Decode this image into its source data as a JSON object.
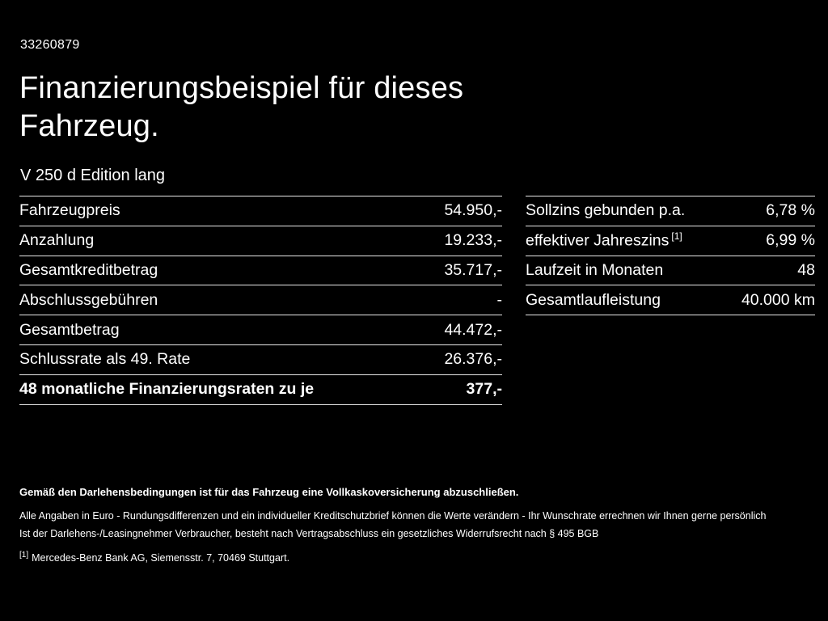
{
  "meta": {
    "vehicle_id": "33260879"
  },
  "header": {
    "title_line1": "Finanzierungsbeispiel für dieses",
    "title_line2": "Fahrzeug.",
    "vehicle_model": "V 250 d Edition lang"
  },
  "left_table": {
    "rows": [
      {
        "label": "Fahrzeugpreis",
        "value": "54.950,-"
      },
      {
        "label": "Anzahlung",
        "value": "19.233,-"
      },
      {
        "label": "Gesamtkreditbetrag",
        "value": "35.717,-"
      },
      {
        "label": "Abschlussgebühren",
        "value": "-"
      },
      {
        "label": "Gesamtbetrag",
        "value": "44.472,-"
      },
      {
        "label": "Schlussrate als 49. Rate",
        "value": "26.376,-"
      },
      {
        "label": "48 monatliche Finanzierungsraten zu je",
        "value": "377,-"
      }
    ]
  },
  "right_table": {
    "rows": [
      {
        "label": "Sollzins gebunden p.a.",
        "sup": "",
        "value": "6,78 %"
      },
      {
        "label": "effektiver Jahreszins",
        "sup": "[1]",
        "value": "6,99 %"
      },
      {
        "label": "Laufzeit in Monaten",
        "sup": "",
        "value": "48"
      },
      {
        "label": "Gesamtlaufleistung",
        "sup": "",
        "value": "40.000 km"
      }
    ]
  },
  "footer": {
    "insurance_note": "Gemäß den Darlehensbedingungen ist für das Fahrzeug eine Vollkaskoversicherung abzuschließen.",
    "general_note": "Alle Angaben in Euro - Rundungsdifferenzen und ein individueller Kreditschutzbrief können die Werte verändern - Ihr Wunschrate errechnen wir Ihnen gerne persönlich",
    "withdrawal_note": "Ist der Darlehens-/Leasingnehmer Verbraucher, besteht nach Vertragsabschluss ein gesetzliches Widerrufsrecht nach § 495 BGB",
    "footnote_marker": "[1]",
    "footnote_text": "Mercedes-Benz Bank AG, Siemensstr. 7, 70469 Stuttgart."
  },
  "colors": {
    "background": "#000000",
    "text": "#ffffff",
    "divider": "#e8e8e8"
  }
}
